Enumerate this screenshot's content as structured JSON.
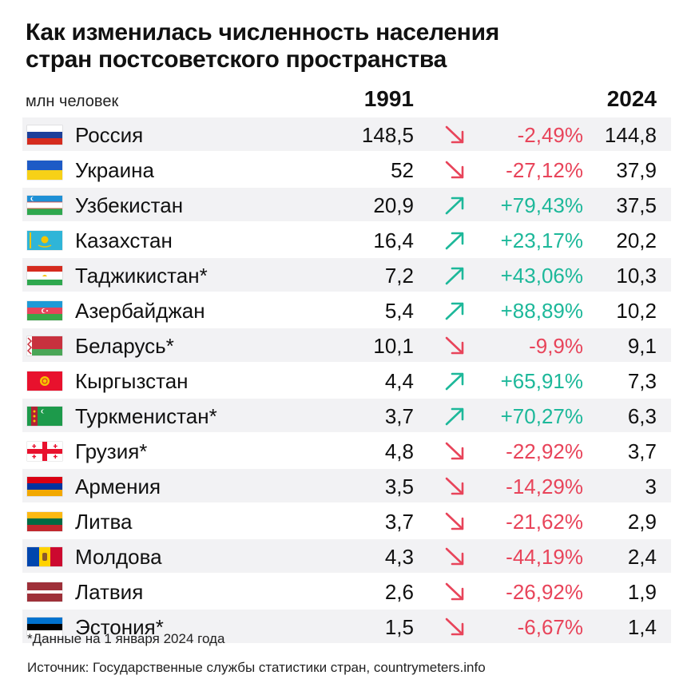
{
  "title_line1": "Как изменилась численность населения",
  "title_line2": "стран постсоветского пространства",
  "colors": {
    "down": "#e8445a",
    "up": "#1db89a"
  },
  "chart_data": {
    "type": "table",
    "unit_label": "млн человек",
    "columns": [
      "1991",
      "2024"
    ],
    "rows": [
      {
        "country": "Россия",
        "flag": "russia-flag-icon",
        "v1991": "148,5",
        "change": "-2,49%",
        "trend": "down",
        "v2024": "144,8"
      },
      {
        "country": "Украина",
        "flag": "ukraine-flag-icon",
        "v1991": "52",
        "change": "-27,12%",
        "trend": "down",
        "v2024": "37,9"
      },
      {
        "country": "Узбекистан",
        "flag": "uzbekistan-flag-icon",
        "v1991": "20,9",
        "change": "+79,43%",
        "trend": "up",
        "v2024": "37,5"
      },
      {
        "country": "Казахстан",
        "flag": "kazakhstan-flag-icon",
        "v1991": "16,4",
        "change": "+23,17%",
        "trend": "up",
        "v2024": "20,2"
      },
      {
        "country": "Таджикистан*",
        "flag": "tajikistan-flag-icon",
        "v1991": "7,2",
        "change": "+43,06%",
        "trend": "up",
        "v2024": "10,3"
      },
      {
        "country": "Азербайджан",
        "flag": "azerbaijan-flag-icon",
        "v1991": "5,4",
        "change": "+88,89%",
        "trend": "up",
        "v2024": "10,2"
      },
      {
        "country": "Беларусь*",
        "flag": "belarus-flag-icon",
        "v1991": "10,1",
        "change": "-9,9%",
        "trend": "down",
        "v2024": "9,1"
      },
      {
        "country": "Кыргызстан",
        "flag": "kyrgyzstan-flag-icon",
        "v1991": "4,4",
        "change": "+65,91%",
        "trend": "up",
        "v2024": "7,3"
      },
      {
        "country": "Туркменистан*",
        "flag": "turkmenistan-flag-icon",
        "v1991": "3,7",
        "change": "+70,27%",
        "trend": "up",
        "v2024": "6,3"
      },
      {
        "country": "Грузия*",
        "flag": "georgia-flag-icon",
        "v1991": "4,8",
        "change": "-22,92%",
        "trend": "down",
        "v2024": "3,7"
      },
      {
        "country": "Армения",
        "flag": "armenia-flag-icon",
        "v1991": "3,5",
        "change": "-14,29%",
        "trend": "down",
        "v2024": "3"
      },
      {
        "country": "Литва",
        "flag": "lithuania-flag-icon",
        "v1991": "3,7",
        "change": "-21,62%",
        "trend": "down",
        "v2024": "2,9"
      },
      {
        "country": "Молдова",
        "flag": "moldova-flag-icon",
        "v1991": "4,3",
        "change": "-44,19%",
        "trend": "down",
        "v2024": "2,4"
      },
      {
        "country": "Латвия",
        "flag": "latvia-flag-icon",
        "v1991": "2,6",
        "change": "-26,92%",
        "trend": "down",
        "v2024": "1,9"
      },
      {
        "country": "Эстония*",
        "flag": "estonia-flag-icon",
        "v1991": "1,5",
        "change": "-6,67%",
        "trend": "down",
        "v2024": "1,4"
      }
    ]
  },
  "footnote": "*Данные на 1 января 2024 года",
  "source": "Источник: Государственные службы статистики стран, countrymeters.info"
}
